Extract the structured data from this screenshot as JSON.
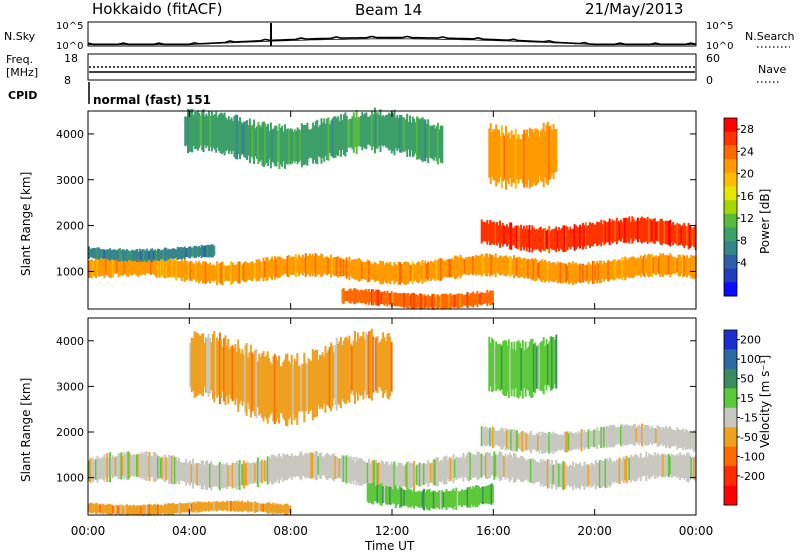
{
  "header": {
    "station": "Hokkaido (fitACF)",
    "beam": "Beam 14",
    "date": "21/May/2013"
  },
  "chart_data": [
    {
      "type": "line",
      "panel": "noise",
      "left_label": "N.Sky",
      "right_label": "N.Search",
      "left_ticks": [
        "10^5",
        "10^0"
      ],
      "right_ticks": [
        "10^5",
        "10^0"
      ],
      "ylim": [
        0,
        5
      ],
      "scale": "log"
    },
    {
      "type": "line",
      "panel": "frequency",
      "left_label_1": "Freq.",
      "left_label_2": "[MHz]",
      "right_label": "Nave",
      "left_ticks": [
        "18",
        "8"
      ],
      "right_ticks": [
        "60",
        "0"
      ],
      "ylim": [
        8,
        18
      ]
    },
    {
      "type": "text",
      "panel": "cpid",
      "label": "CPID",
      "value": "normal (fast) 151"
    },
    {
      "type": "heatmap",
      "panel": "power",
      "ylabel": "Slant Range [km]",
      "ylim": [
        180,
        4500
      ],
      "y_ticks": [
        "4000",
        "3000",
        "2000",
        "1000"
      ],
      "colorbar": {
        "label": "Power [dB]",
        "ticks": [
          "28",
          "24",
          "20",
          "16",
          "12",
          "8",
          "4"
        ],
        "colors": [
          "#ff0000",
          "#ff3300",
          "#ff6a00",
          "#ff9a00",
          "#ffbf00",
          "#e6e600",
          "#a6d700",
          "#57bb3c",
          "#3d9f69",
          "#36858d",
          "#2d60a7",
          "#203cc2",
          "#0b0bff"
        ]
      },
      "echo_bands": [
        {
          "x_start_ut": 0.0,
          "x_end_ut": 24.0,
          "y_center_km": 1050,
          "y_half_width_km": 260,
          "level_db": 24
        },
        {
          "x_start_ut": 15.5,
          "x_end_ut": 24.0,
          "y_center_km": 1800,
          "y_half_width_km": 300,
          "level_db": 28
        },
        {
          "x_start_ut": 15.8,
          "x_end_ut": 18.5,
          "y_center_km": 3700,
          "y_half_width_km": 700,
          "level_db": 24
        },
        {
          "x_start_ut": 0.0,
          "x_end_ut": 5.0,
          "y_center_km": 1400,
          "y_half_width_km": 150,
          "level_db": 8
        },
        {
          "x_start_ut": 3.8,
          "x_end_ut": 14.0,
          "y_center_km": 3900,
          "y_half_width_km": 500,
          "level_db": 12
        },
        {
          "x_start_ut": 10.0,
          "x_end_ut": 16.0,
          "y_center_km": 400,
          "y_half_width_km": 180,
          "level_db": 26
        }
      ]
    },
    {
      "type": "heatmap",
      "panel": "velocity",
      "ylabel": "Slant Range [km]",
      "ylim": [
        180,
        4500
      ],
      "y_ticks": [
        "4000",
        "3000",
        "2000",
        "1000"
      ],
      "colorbar": {
        "label": "Velocity [m s⁻¹]",
        "ticks": [
          "200",
          "100",
          "50",
          "15",
          "-15",
          "-50",
          "-100",
          "-200"
        ],
        "colors": [
          "#1a2fcf",
          "#2a6aa3",
          "#3a8c5e",
          "#5cc93a",
          "#c8c8c0",
          "#f0a020",
          "#ff6a00",
          "#ff2a00",
          "#ff0000"
        ]
      },
      "echo_bands": [
        {
          "x_start_ut": 0.0,
          "x_end_ut": 24.0,
          "y_center_km": 1150,
          "y_half_width_km": 330,
          "level_ms": 0
        },
        {
          "x_start_ut": 15.5,
          "x_end_ut": 24.0,
          "y_center_km": 1850,
          "y_half_width_km": 250,
          "level_ms": 0
        },
        {
          "x_start_ut": 15.8,
          "x_end_ut": 18.5,
          "y_center_km": 3600,
          "y_half_width_km": 650,
          "level_ms": 50
        },
        {
          "x_start_ut": 0.0,
          "x_end_ut": 8.0,
          "y_center_km": 330,
          "y_half_width_km": 130,
          "level_ms": -50
        },
        {
          "x_start_ut": 4.0,
          "x_end_ut": 12.0,
          "y_center_km": 3200,
          "y_half_width_km": 800,
          "level_ms": -50
        },
        {
          "x_start_ut": 11.0,
          "x_end_ut": 16.0,
          "y_center_km": 600,
          "y_half_width_km": 250,
          "level_ms": 50
        }
      ]
    }
  ],
  "x_axis": {
    "label": "Time UT",
    "xlim": [
      0,
      24
    ],
    "ticks": [
      "00:00",
      "04:00",
      "08:00",
      "12:00",
      "16:00",
      "20:00",
      "00:00"
    ]
  }
}
